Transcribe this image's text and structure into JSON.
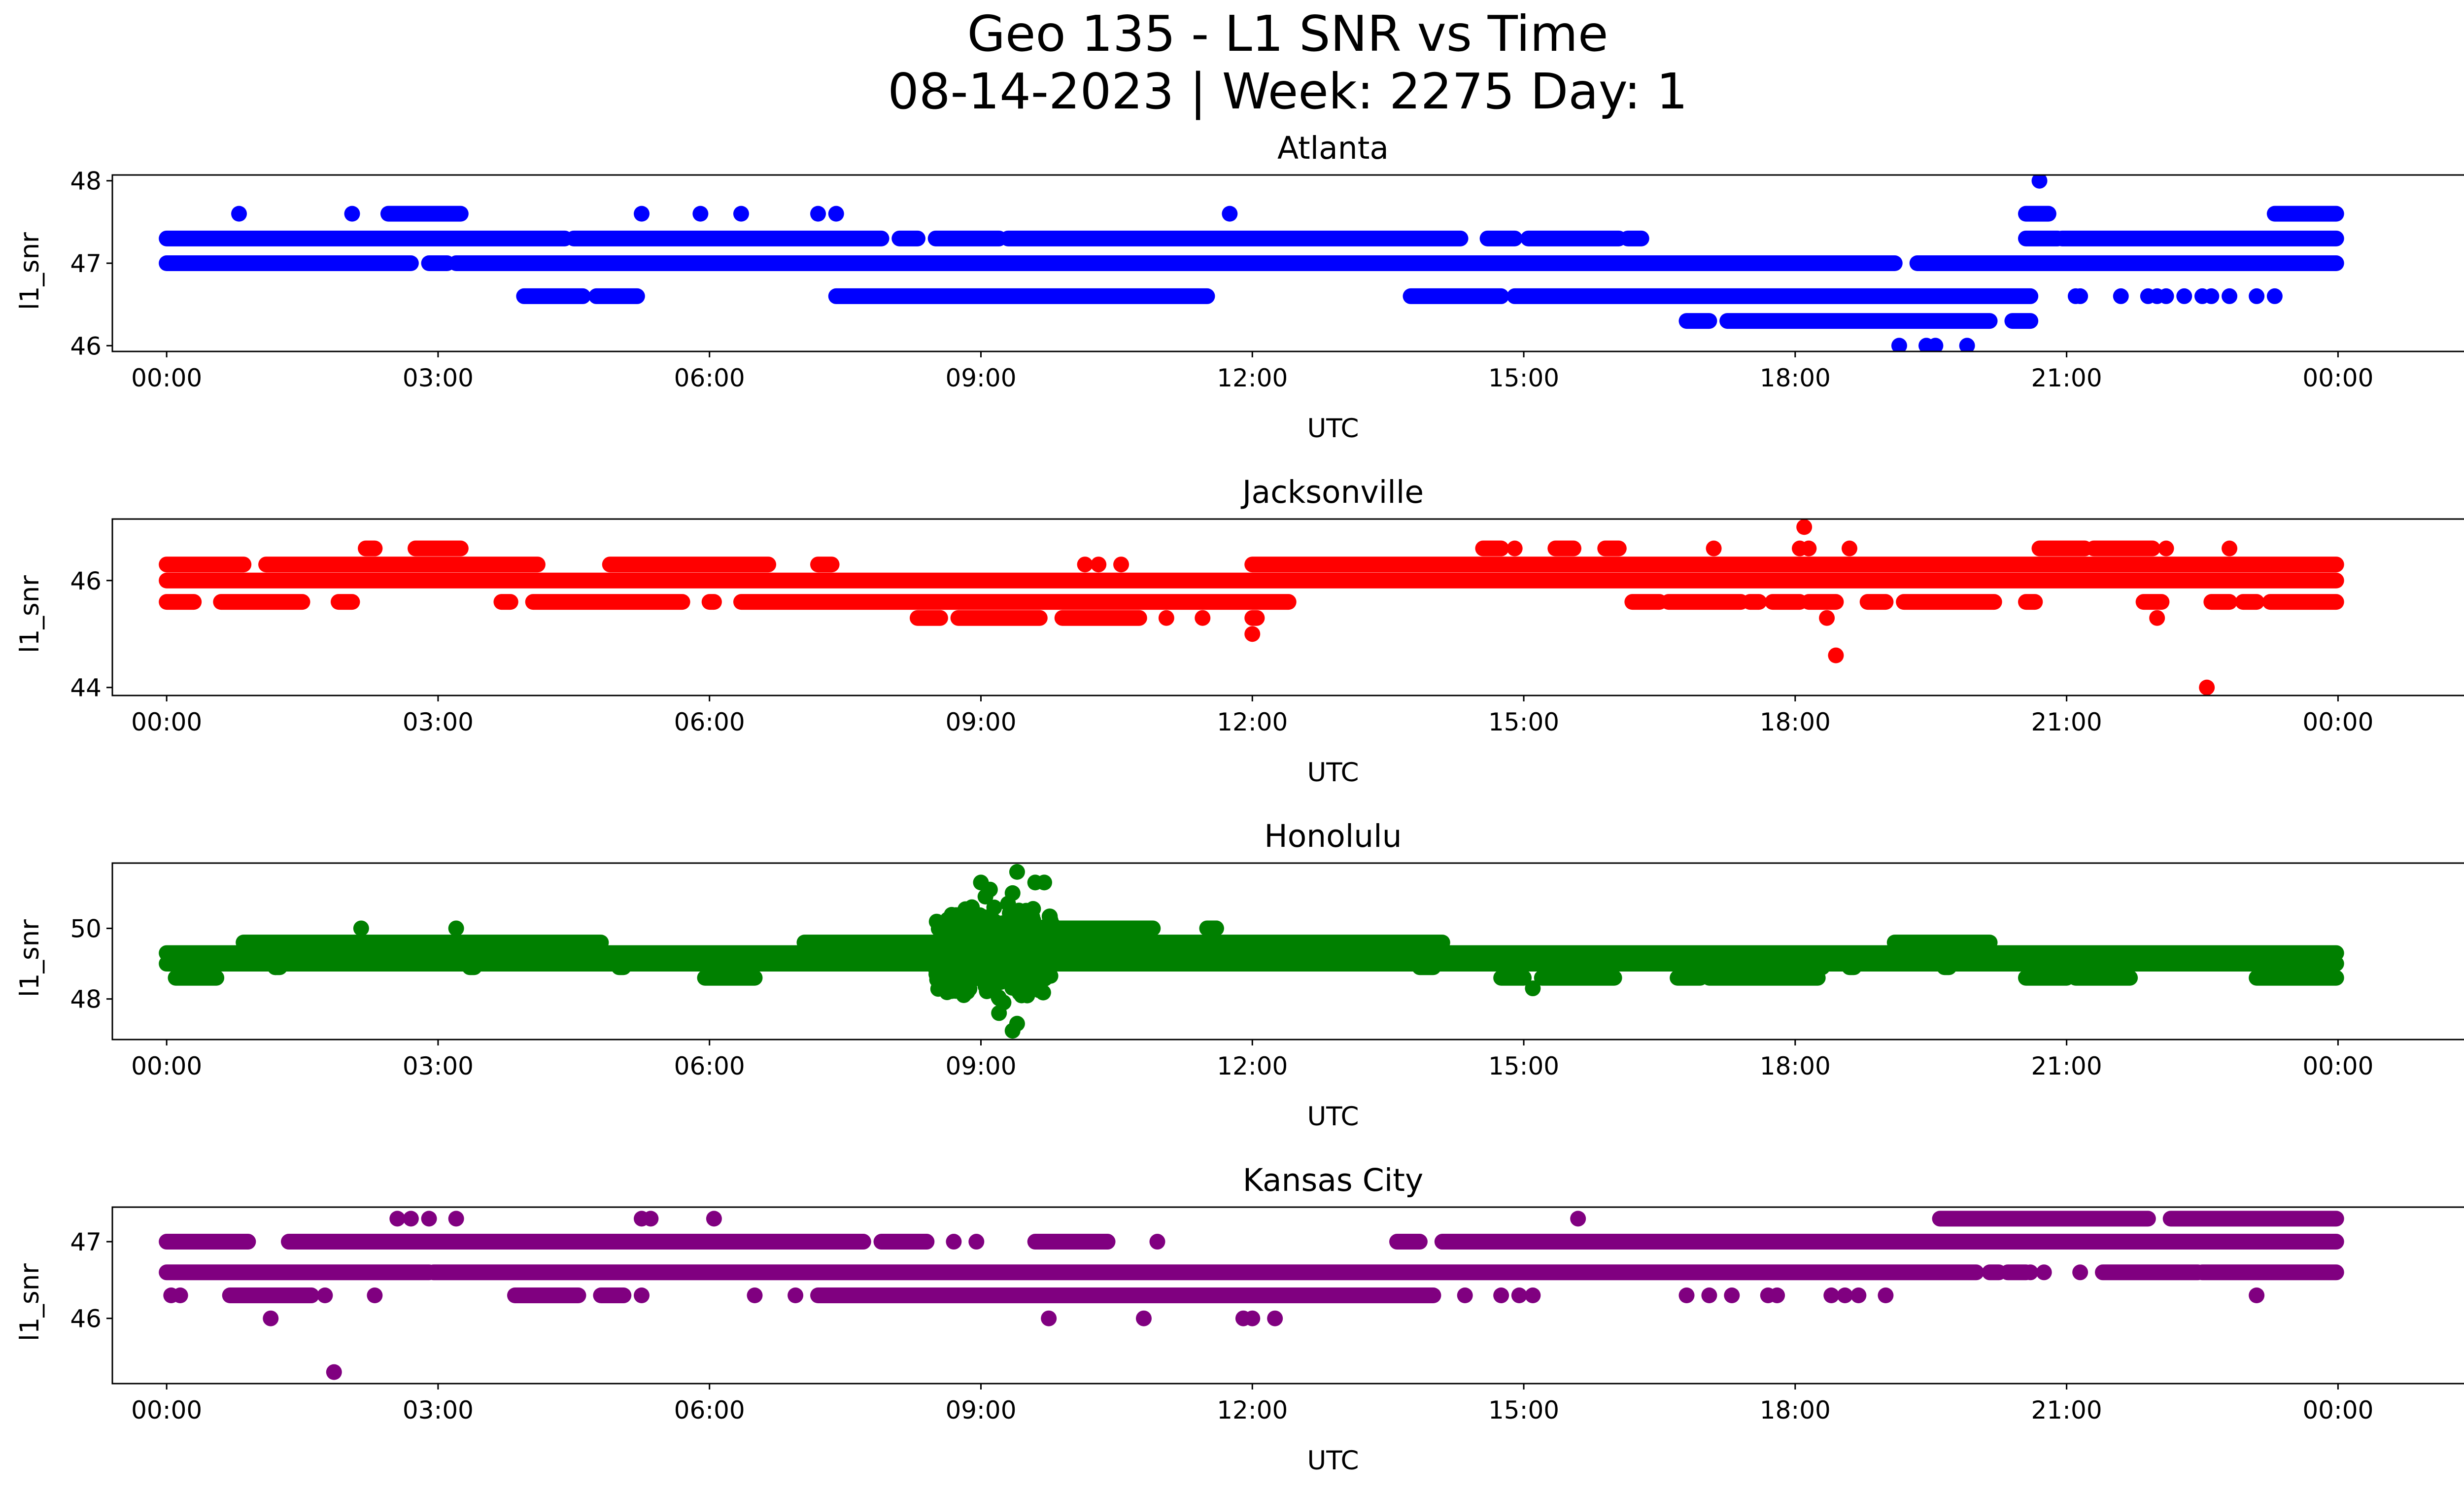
{
  "figure": {
    "title_line1": "Geo 135 - L1 SNR vs Time",
    "title_line2": "08-14-2023 | Week: 2275 Day: 1"
  },
  "chart_data": [
    {
      "type": "scatter",
      "title": "Atlanta",
      "xlabel": "UTC",
      "ylabel": "l1_snr",
      "color": "#0000ff",
      "xlim": [
        -0.6,
        26.4
      ],
      "ylim": [
        45.93,
        48.07
      ],
      "x_tick_values": [
        0,
        3,
        6,
        9,
        12,
        15,
        18,
        21,
        24
      ],
      "x_tick_labels": [
        "00:00",
        "03:00",
        "06:00",
        "09:00",
        "12:00",
        "15:00",
        "18:00",
        "21:00",
        "00:00"
      ],
      "y_ticks": [
        46,
        47,
        48
      ],
      "bands": [
        {
          "y": 47.0,
          "segments": [
            [
              0.0,
              2.7
            ],
            [
              2.9,
              3.1
            ],
            [
              3.2,
              19.1
            ],
            [
              19.35,
              23.98
            ]
          ]
        },
        {
          "y": 47.3,
          "segments": [
            [
              0.0,
              4.4
            ],
            [
              4.5,
              7.9
            ],
            [
              8.1,
              8.3
            ],
            [
              8.5,
              9.2
            ],
            [
              9.3,
              14.3
            ],
            [
              14.6,
              14.9
            ],
            [
              15.05,
              16.05
            ],
            [
              16.15,
              16.3
            ],
            [
              20.55,
              20.9
            ],
            [
              20.95,
              23.98
            ]
          ]
        },
        {
          "y": 46.6,
          "segments": [
            [
              3.95,
              4.6
            ],
            [
              4.75,
              5.2
            ],
            [
              7.4,
              11.5
            ],
            [
              13.75,
              14.75
            ],
            [
              14.9,
              20.6
            ]
          ]
        },
        {
          "y": 46.3,
          "segments": [
            [
              16.8,
              17.05
            ],
            [
              17.25,
              20.15
            ],
            [
              20.4,
              20.6
            ]
          ]
        },
        {
          "y": 47.6,
          "segments": [
            [
              2.45,
              3.25
            ],
            [
              20.55,
              20.8
            ],
            [
              23.3,
              23.98
            ]
          ]
        }
      ],
      "points": [
        {
          "x": 0.8,
          "y": 47.6
        },
        {
          "x": 2.05,
          "y": 47.6
        },
        {
          "x": 5.25,
          "y": 47.6
        },
        {
          "x": 5.9,
          "y": 47.6
        },
        {
          "x": 6.35,
          "y": 47.6
        },
        {
          "x": 7.2,
          "y": 47.6
        },
        {
          "x": 7.4,
          "y": 47.6
        },
        {
          "x": 11.75,
          "y": 47.6
        },
        {
          "x": 20.7,
          "y": 48.0
        },
        {
          "x": 19.15,
          "y": 46.0
        },
        {
          "x": 19.45,
          "y": 46.0
        },
        {
          "x": 19.55,
          "y": 46.0
        },
        {
          "x": 19.9,
          "y": 46.0
        },
        {
          "x": 21.1,
          "y": 46.6
        },
        {
          "x": 21.15,
          "y": 46.6
        },
        {
          "x": 21.6,
          "y": 46.6
        },
        {
          "x": 21.9,
          "y": 46.6
        },
        {
          "x": 22.0,
          "y": 46.6
        },
        {
          "x": 22.1,
          "y": 46.6
        },
        {
          "x": 22.3,
          "y": 46.6
        },
        {
          "x": 22.5,
          "y": 46.6
        },
        {
          "x": 22.6,
          "y": 46.6
        },
        {
          "x": 22.8,
          "y": 46.6
        },
        {
          "x": 23.1,
          "y": 46.6
        },
        {
          "x": 23.3,
          "y": 46.6
        }
      ]
    },
    {
      "type": "scatter",
      "title": "Jacksonville",
      "xlabel": "UTC",
      "ylabel": "l1_snr",
      "color": "#ff0000",
      "xlim": [
        -0.6,
        26.4
      ],
      "ylim": [
        43.85,
        47.15
      ],
      "x_tick_values": [
        0,
        3,
        6,
        9,
        12,
        15,
        18,
        21,
        24
      ],
      "x_tick_labels": [
        "00:00",
        "03:00",
        "06:00",
        "09:00",
        "12:00",
        "15:00",
        "18:00",
        "21:00",
        "00:00"
      ],
      "y_ticks": [
        44,
        46
      ],
      "bands": [
        {
          "y": 46.0,
          "segments": [
            [
              0.0,
              23.98
            ]
          ]
        },
        {
          "y": 46.3,
          "segments": [
            [
              0.0,
              0.85
            ],
            [
              1.1,
              4.1
            ],
            [
              4.9,
              6.65
            ],
            [
              7.2,
              7.35
            ],
            [
              12.0,
              23.98
            ]
          ]
        },
        {
          "y": 45.6,
          "segments": [
            [
              0.0,
              0.3
            ],
            [
              0.6,
              1.5
            ],
            [
              1.9,
              2.05
            ],
            [
              3.7,
              3.8
            ],
            [
              4.05,
              5.7
            ],
            [
              6.0,
              6.05
            ],
            [
              6.35,
              12.4
            ],
            [
              16.2,
              16.5
            ],
            [
              16.6,
              17.4
            ],
            [
              17.5,
              17.6
            ],
            [
              17.75,
              18.05
            ],
            [
              18.15,
              18.45
            ],
            [
              18.8,
              19.0
            ],
            [
              19.2,
              20.2
            ],
            [
              20.55,
              20.65
            ],
            [
              21.85,
              22.05
            ],
            [
              22.6,
              22.8
            ],
            [
              22.95,
              23.1
            ],
            [
              23.25,
              23.98
            ]
          ]
        },
        {
          "y": 45.3,
          "segments": [
            [
              8.3,
              8.55
            ],
            [
              8.75,
              9.65
            ],
            [
              9.9,
              10.75
            ],
            [
              12.0,
              12.05
            ]
          ]
        },
        {
          "y": 46.6,
          "segments": [
            [
              2.2,
              2.3
            ],
            [
              2.75,
              3.25
            ],
            [
              14.55,
              14.75
            ],
            [
              15.35,
              15.55
            ],
            [
              15.9,
              16.05
            ],
            [
              20.7,
              21.2
            ],
            [
              21.3,
              21.95
            ]
          ]
        }
      ],
      "points": [
        {
          "x": 10.15,
          "y": 46.3
        },
        {
          "x": 10.3,
          "y": 46.3
        },
        {
          "x": 10.55,
          "y": 46.3
        },
        {
          "x": 11.05,
          "y": 45.3
        },
        {
          "x": 11.45,
          "y": 45.3
        },
        {
          "x": 12.0,
          "y": 45.0
        },
        {
          "x": 14.9,
          "y": 46.6
        },
        {
          "x": 17.1,
          "y": 46.6
        },
        {
          "x": 18.05,
          "y": 46.6
        },
        {
          "x": 18.15,
          "y": 46.6
        },
        {
          "x": 18.6,
          "y": 46.6
        },
        {
          "x": 22.1,
          "y": 46.6
        },
        {
          "x": 22.8,
          "y": 46.6
        },
        {
          "x": 18.1,
          "y": 47.0
        },
        {
          "x": 18.35,
          "y": 45.3
        },
        {
          "x": 18.45,
          "y": 44.6
        },
        {
          "x": 22.0,
          "y": 45.3
        },
        {
          "x": 22.55,
          "y": 44.0
        }
      ]
    },
    {
      "type": "scatter",
      "title": "Honolulu",
      "xlabel": "UTC",
      "ylabel": "l1_snr",
      "color": "#008000",
      "xlim": [
        -0.6,
        26.4
      ],
      "ylim": [
        46.85,
        51.85
      ],
      "x_tick_values": [
        0,
        3,
        6,
        9,
        12,
        15,
        18,
        21,
        24
      ],
      "x_tick_labels": [
        "00:00",
        "03:00",
        "06:00",
        "09:00",
        "12:00",
        "15:00",
        "18:00",
        "21:00",
        "00:00"
      ],
      "y_ticks": [
        48,
        50
      ],
      "bands": [
        {
          "y": 49.0,
          "segments": [
            [
              0.0,
              23.98
            ]
          ]
        },
        {
          "y": 49.3,
          "segments": [
            [
              0.0,
              23.98
            ]
          ]
        },
        {
          "y": 49.6,
          "segments": [
            [
              0.85,
              4.8
            ],
            [
              7.05,
              14.1
            ],
            [
              19.1,
              20.15
            ]
          ]
        },
        {
          "y": 48.6,
          "segments": [
            [
              0.1,
              0.55
            ],
            [
              5.95,
              6.5
            ],
            [
              14.75,
              15.0
            ],
            [
              15.2,
              16.0
            ],
            [
              16.7,
              16.95
            ],
            [
              17.05,
              18.25
            ],
            [
              20.55,
              21.0
            ],
            [
              21.1,
              21.7
            ],
            [
              23.1,
              23.98
            ]
          ]
        },
        {
          "y": 50.0,
          "segments": [
            [
              9.6,
              10.9
            ],
            [
              11.5,
              11.6
            ]
          ]
        },
        {
          "y": 48.9,
          "segments": [
            [
              0.2,
              0.3
            ],
            [
              1.2,
              1.25
            ],
            [
              3.35,
              3.4
            ],
            [
              5.0,
              5.05
            ],
            [
              13.85,
              14.0
            ],
            [
              17.05,
              17.1
            ],
            [
              18.2,
              18.3
            ],
            [
              18.6,
              18.65
            ],
            [
              19.65,
              19.7
            ]
          ]
        }
      ],
      "points": [
        {
          "x": 8.85,
          "y": 48.2
        },
        {
          "x": 8.9,
          "y": 50.6
        },
        {
          "x": 9.05,
          "y": 50.9
        },
        {
          "x": 9.1,
          "y": 51.1
        },
        {
          "x": 9.25,
          "y": 47.9
        },
        {
          "x": 9.3,
          "y": 50.7
        },
        {
          "x": 9.2,
          "y": 47.6
        },
        {
          "x": 9.35,
          "y": 51.0
        },
        {
          "x": 9.4,
          "y": 51.6
        },
        {
          "x": 9.35,
          "y": 47.1
        },
        {
          "x": 9.4,
          "y": 47.3
        },
        {
          "x": 9.45,
          "y": 48.1
        },
        {
          "x": 9.5,
          "y": 50.5
        },
        {
          "x": 9.6,
          "y": 51.3
        },
        {
          "x": 9.7,
          "y": 51.3
        },
        {
          "x": 9.55,
          "y": 48.5
        },
        {
          "x": 9.0,
          "y": 51.3
        },
        {
          "x": 9.15,
          "y": 50.2
        },
        {
          "x": 9.65,
          "y": 48.7
        },
        {
          "x": 8.8,
          "y": 48.5
        },
        {
          "x": 2.15,
          "y": 50.0
        },
        {
          "x": 3.2,
          "y": 50.0
        },
        {
          "x": 11.6,
          "y": 50.0
        },
        {
          "x": 1.2,
          "y": 48.9
        },
        {
          "x": 15.1,
          "y": 48.3
        }
      ],
      "noise_cluster": {
        "x_range": [
          8.5,
          9.8
        ],
        "y_range": [
          47.8,
          50.9
        ],
        "count": 420
      }
    },
    {
      "type": "scatter",
      "title": "Kansas City",
      "xlabel": "UTC",
      "ylabel": "l1_snr",
      "color": "#800080",
      "xlim": [
        -0.6,
        26.4
      ],
      "ylim": [
        45.15,
        47.45
      ],
      "x_tick_values": [
        0,
        3,
        6,
        9,
        12,
        15,
        18,
        21,
        24
      ],
      "x_tick_labels": [
        "00:00",
        "03:00",
        "06:00",
        "09:00",
        "12:00",
        "15:00",
        "18:00",
        "21:00",
        "00:00"
      ],
      "y_ticks": [
        46,
        47
      ],
      "bands": [
        {
          "y": 46.6,
          "segments": [
            [
              0.0,
              2.9
            ],
            [
              2.95,
              20.0
            ],
            [
              20.15,
              20.25
            ],
            [
              20.35,
              20.55
            ],
            [
              21.4,
              22.45
            ],
            [
              22.5,
              23.98
            ]
          ]
        },
        {
          "y": 47.0,
          "segments": [
            [
              0.0,
              0.9
            ],
            [
              1.35,
              7.7
            ],
            [
              7.9,
              8.4
            ],
            [
              9.6,
              10.4
            ],
            [
              13.6,
              13.85
            ],
            [
              14.1,
              23.98
            ]
          ]
        },
        {
          "y": 46.3,
          "segments": [
            [
              0.7,
              1.6
            ],
            [
              7.2,
              14.0
            ],
            [
              3.85,
              4.55
            ],
            [
              4.8,
              5.05
            ]
          ]
        },
        {
          "y": 47.3,
          "segments": [
            [
              19.6,
              21.9
            ],
            [
              22.15,
              23.98
            ]
          ]
        }
      ],
      "points": [
        {
          "x": 0.05,
          "y": 46.3
        },
        {
          "x": 0.15,
          "y": 46.3
        },
        {
          "x": 1.15,
          "y": 46.0
        },
        {
          "x": 1.85,
          "y": 45.3
        },
        {
          "x": 1.75,
          "y": 46.3
        },
        {
          "x": 2.3,
          "y": 46.3
        },
        {
          "x": 2.55,
          "y": 47.3
        },
        {
          "x": 2.7,
          "y": 47.3
        },
        {
          "x": 2.9,
          "y": 47.3
        },
        {
          "x": 3.2,
          "y": 47.3
        },
        {
          "x": 5.25,
          "y": 47.3
        },
        {
          "x": 5.35,
          "y": 47.3
        },
        {
          "x": 6.05,
          "y": 47.3
        },
        {
          "x": 5.25,
          "y": 46.3
        },
        {
          "x": 6.5,
          "y": 46.3
        },
        {
          "x": 6.95,
          "y": 46.3
        },
        {
          "x": 8.7,
          "y": 47.0
        },
        {
          "x": 8.95,
          "y": 47.0
        },
        {
          "x": 9.75,
          "y": 46.0
        },
        {
          "x": 10.8,
          "y": 46.0
        },
        {
          "x": 10.95,
          "y": 47.0
        },
        {
          "x": 11.9,
          "y": 46.0
        },
        {
          "x": 12.0,
          "y": 46.0
        },
        {
          "x": 12.25,
          "y": 46.0
        },
        {
          "x": 14.35,
          "y": 46.3
        },
        {
          "x": 14.75,
          "y": 46.3
        },
        {
          "x": 14.95,
          "y": 46.3
        },
        {
          "x": 15.1,
          "y": 46.3
        },
        {
          "x": 15.6,
          "y": 47.3
        },
        {
          "x": 16.8,
          "y": 46.3
        },
        {
          "x": 17.05,
          "y": 46.3
        },
        {
          "x": 17.3,
          "y": 46.3
        },
        {
          "x": 17.7,
          "y": 46.3
        },
        {
          "x": 17.8,
          "y": 46.3
        },
        {
          "x": 18.4,
          "y": 46.3
        },
        {
          "x": 18.55,
          "y": 46.3
        },
        {
          "x": 18.7,
          "y": 46.3
        },
        {
          "x": 19.0,
          "y": 46.3
        },
        {
          "x": 20.6,
          "y": 46.6
        },
        {
          "x": 20.75,
          "y": 46.6
        },
        {
          "x": 21.15,
          "y": 46.6
        },
        {
          "x": 23.1,
          "y": 46.3
        }
      ]
    }
  ]
}
